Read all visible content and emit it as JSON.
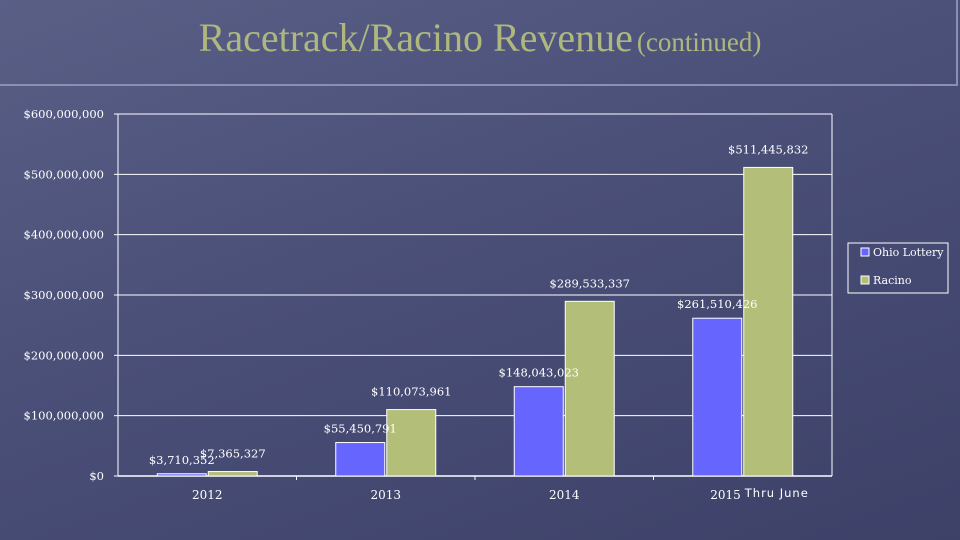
{
  "slide": {
    "title_main": "Racetrack/Racino Revenue",
    "title_sub": "(continued)"
  },
  "chart_data": {
    "type": "bar",
    "title": "Racetrack/Racino Revenue (continued)",
    "categories": [
      "2012",
      "2013",
      "2014",
      "2015"
    ],
    "category_suffix": [
      "",
      "",
      "",
      "Thru June"
    ],
    "series": [
      {
        "name": "Ohio Lottery",
        "color": "#6666ff",
        "values": [
          3710352,
          55450791,
          148043023,
          261510426
        ],
        "labels": [
          "$3,710,352",
          "$55,450,791",
          "$148,043,023",
          "$261,510,426"
        ]
      },
      {
        "name": "Racino",
        "color": "#b3bf78",
        "values": [
          7365327,
          110073961,
          289533337,
          511445832
        ],
        "labels": [
          "$7,365,327",
          "$110,073,961",
          "$289,533,337",
          "$511,445,832"
        ]
      }
    ],
    "ylim": [
      0,
      600000000
    ],
    "ytick_values": [
      0,
      100000000,
      200000000,
      300000000,
      400000000,
      500000000,
      600000000
    ],
    "ytick_labels": [
      "$0",
      "$100,000,000",
      "$200,000,000",
      "$300,000,000",
      "$400,000,000",
      "$500,000,000",
      "$600,000,000"
    ],
    "grid": true,
    "legend_position": "right",
    "xlabel": "",
    "ylabel": ""
  }
}
